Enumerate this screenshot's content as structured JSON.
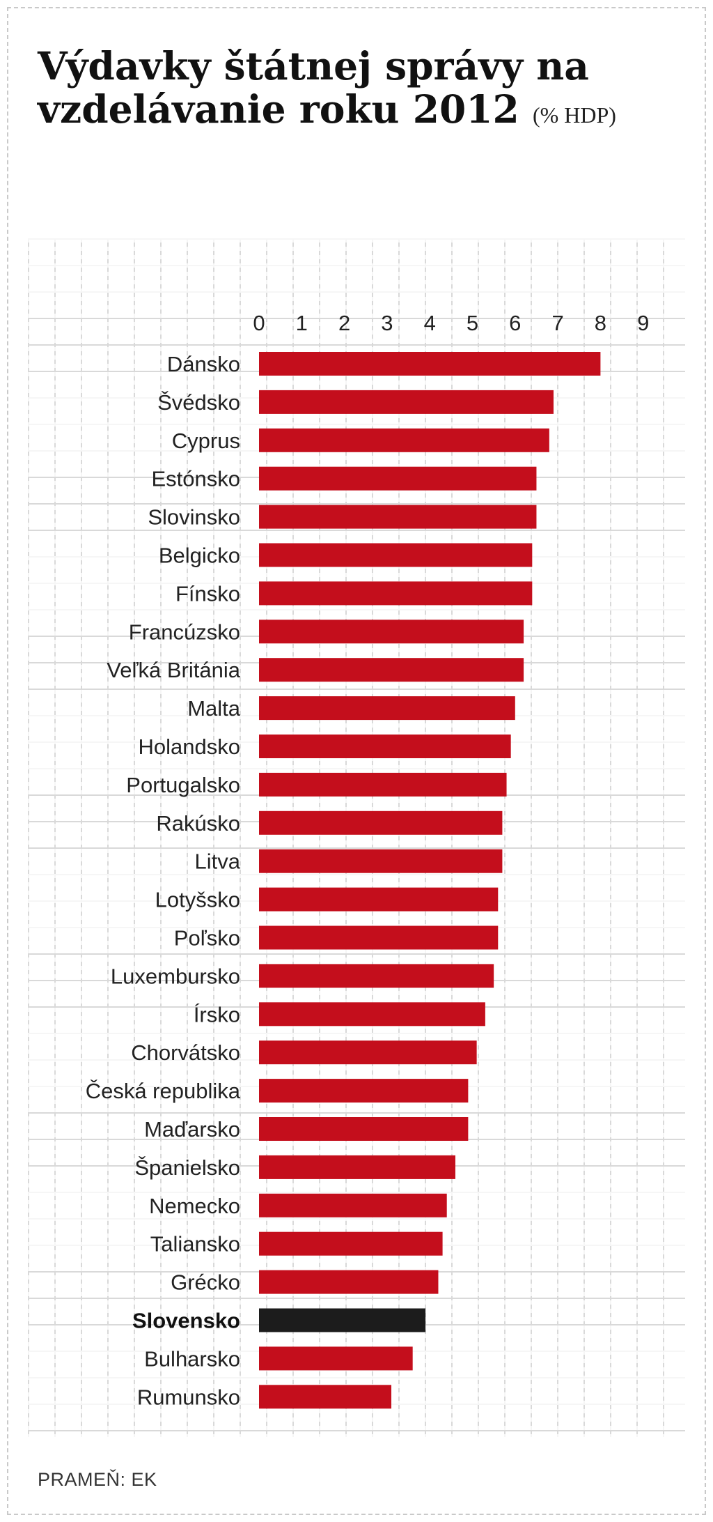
{
  "title": {
    "main": "Výdavky štátnej správy na vzdelávanie roku 2012",
    "unit": "(% HDP)"
  },
  "source": "PRAMEŇ: EK",
  "colors": {
    "bar": "#c40e1c",
    "highlight": "#1c1c1c"
  },
  "chart_data": {
    "type": "bar",
    "orientation": "horizontal",
    "x_ticks": [
      "0",
      "1",
      "2",
      "3",
      "4",
      "5",
      "6",
      "7",
      "8",
      "9"
    ],
    "xlim": [
      0,
      9
    ],
    "grid": true,
    "highlight": "Slovensko",
    "categories": [
      "Dánsko",
      "Švédsko",
      "Cyprus",
      "Estónsko",
      "Slovinsko",
      "Belgicko",
      "Fínsko",
      "Francúzsko",
      "Veľká Británia",
      "Malta",
      "Holandsko",
      "Portugalsko",
      "Rakúsko",
      "Litva",
      "Lotyšsko",
      "Poľsko",
      "Luxembursko",
      "Írsko",
      "Chorvátsko",
      "Česká republika",
      "Maďarsko",
      "Španielsko",
      "Nemecko",
      "Taliansko",
      "Grécko",
      "Slovensko",
      "Bulharsko",
      "Rumunsko"
    ],
    "values": [
      8.0,
      6.9,
      6.8,
      6.5,
      6.5,
      6.4,
      6.4,
      6.2,
      6.2,
      6.0,
      5.9,
      5.8,
      5.7,
      5.7,
      5.6,
      5.6,
      5.5,
      5.3,
      5.1,
      4.9,
      4.9,
      4.6,
      4.4,
      4.3,
      4.2,
      3.9,
      3.6,
      3.1
    ]
  }
}
